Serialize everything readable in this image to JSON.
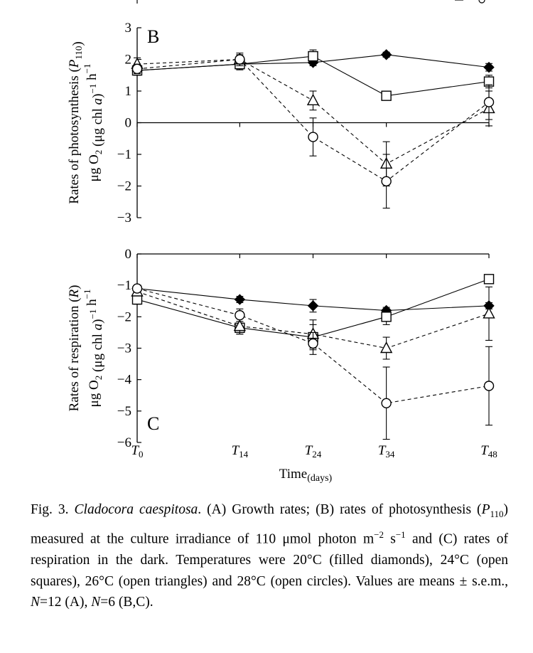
{
  "chart_data": [
    {
      "type": "line",
      "panel_label": "B",
      "ylabel": "Rates of photosynthesis (P110) μg O2 (μg chl a)−1 h−1",
      "ylim": [
        -3,
        3
      ],
      "yticks": [
        "3",
        "2",
        "1",
        "0",
        "−1",
        "−2",
        "−3"
      ],
      "x": [
        0,
        14,
        24,
        34,
        48
      ],
      "legend": "none",
      "series": [
        {
          "marker": "filled-diamond",
          "line": "solid",
          "values": [
            1.65,
            1.85,
            1.9,
            2.15,
            1.75
          ],
          "errors": [
            0.12,
            0.15,
            0.1,
            0.08,
            0.12
          ]
        },
        {
          "marker": "open-square",
          "line": "solid",
          "values": [
            1.65,
            1.85,
            2.1,
            0.85,
            1.3
          ],
          "errors": [
            0.15,
            0.18,
            0.2,
            0.05,
            0.2
          ]
        },
        {
          "marker": "open-triangle",
          "line": "dashed",
          "values": [
            1.85,
            2.0,
            0.7,
            -1.3,
            0.45
          ],
          "errors": [
            0.2,
            0.2,
            0.3,
            0.7,
            0.55
          ]
        },
        {
          "marker": "open-circle",
          "line": "dashed",
          "values": [
            1.7,
            2.0,
            -0.45,
            -1.85,
            0.65
          ],
          "errors": [
            0.15,
            0.15,
            0.6,
            0.85,
            0.55
          ]
        }
      ]
    },
    {
      "type": "line",
      "panel_label": "C",
      "ylabel": "Rates of respiration (R) μg O2 (μg chl a)−1 h−1",
      "xlabel": "Time(days)",
      "ylim": [
        -6,
        0
      ],
      "yticks": [
        "0",
        "−1",
        "−2",
        "−3",
        "−4",
        "−5",
        "−6"
      ],
      "x": [
        0,
        14,
        24,
        34,
        48
      ],
      "xtick_labels": [
        "T0",
        "T14",
        "T24",
        "T34",
        "T48"
      ],
      "legend": "none",
      "series": [
        {
          "marker": "filled-diamond",
          "line": "solid",
          "values": [
            -1.1,
            -1.45,
            -1.65,
            -1.8,
            -1.65
          ],
          "errors": [
            0.1,
            0.1,
            0.2,
            0.1,
            0.1
          ]
        },
        {
          "marker": "open-square",
          "line": "solid",
          "values": [
            -1.45,
            -2.35,
            -2.65,
            -2.0,
            -0.8
          ],
          "errors": [
            0.15,
            0.2,
            0.4,
            0.25,
            0.1
          ]
        },
        {
          "marker": "open-triangle",
          "line": "dashed",
          "values": [
            -1.2,
            -2.3,
            -2.55,
            -3.0,
            -1.9
          ],
          "errors": [
            0.1,
            0.25,
            0.45,
            0.35,
            0.85
          ]
        },
        {
          "marker": "open-circle",
          "line": "dashed",
          "values": [
            -1.1,
            -1.95,
            -2.85,
            -4.75,
            -4.2
          ],
          "errors": [
            0.1,
            0.2,
            0.35,
            1.15,
            1.25
          ]
        }
      ]
    }
  ],
  "caption": {
    "fig": "Fig. 3.",
    "species": "Cladocora caespitosa",
    "part1": ". (A) Growth rates; (B) rates of photosynthesis (",
    "p_symbol": "P",
    "p_sub": "110",
    "part2": ") measured at the culture irradiance of 110 μmol photon m",
    "exp1": "−2",
    "part3": " s",
    "exp2": "−1",
    "part4": " and (C) rates of respiration in the dark. Temperatures were 20°C (filled diamonds), 24°C (open squares), 26°C (open triangles) and 28°C (open circles). Values are means ± s.e.m., ",
    "n1": "N",
    "part5": "=12 (A), ",
    "n2": "N",
    "part6": "=6 (B,C)."
  }
}
